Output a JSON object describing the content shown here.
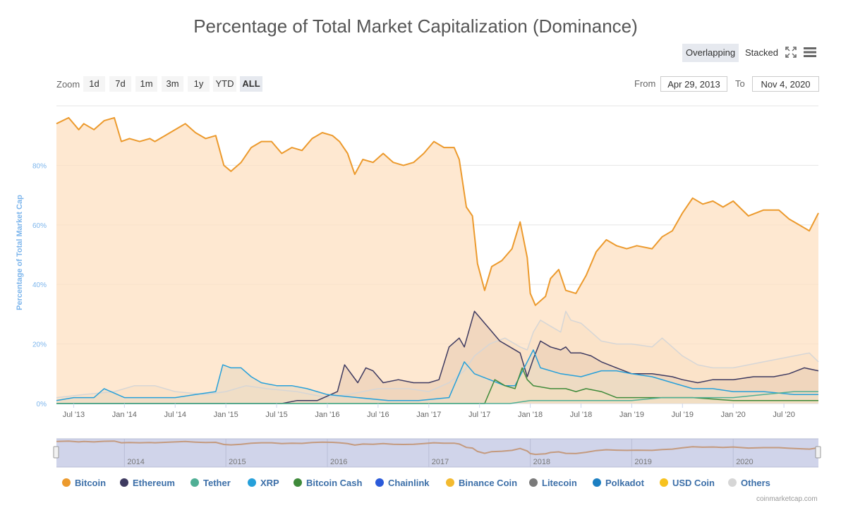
{
  "title": "Percentage of Total Market Capitalization (Dominance)",
  "modes": {
    "overlapping": "Overlapping",
    "stacked": "Stacked"
  },
  "zoom": {
    "label": "Zoom",
    "buttons": [
      "1d",
      "7d",
      "1m",
      "3m",
      "1y",
      "YTD",
      "ALL"
    ],
    "active": "ALL"
  },
  "range": {
    "from_label": "From",
    "from_value": "Apr 29, 2013",
    "to_label": "To",
    "to_value": "Nov 4, 2020"
  },
  "credit": "coinmarketcap.com",
  "icons": {
    "fullscreen": "fullscreen-icon",
    "menu": "hamburger-menu-icon"
  },
  "chart_data": {
    "type": "area",
    "title": "Percentage of Total Market Capitalization (Dominance)",
    "ylabel": "Percentage of Total Market Cap",
    "xlabel": "",
    "ylim": [
      0,
      100
    ],
    "y_ticks": [
      0,
      20,
      40,
      60,
      80
    ],
    "y_tick_labels": [
      "0%",
      "20%",
      "40%",
      "60%",
      "80%"
    ],
    "x_range": [
      2013.33,
      2020.84
    ],
    "x_ticks": [
      {
        "label": "Jul '13",
        "x": 2013.5
      },
      {
        "label": "Jan '14",
        "x": 2014.0
      },
      {
        "label": "Jul '14",
        "x": 2014.5
      },
      {
        "label": "Jan '15",
        "x": 2015.0
      },
      {
        "label": "Jul '15",
        "x": 2015.5
      },
      {
        "label": "Jan '16",
        "x": 2016.0
      },
      {
        "label": "Jul '16",
        "x": 2016.5
      },
      {
        "label": "Jan '17",
        "x": 2017.0
      },
      {
        "label": "Jul '17",
        "x": 2017.5
      },
      {
        "label": "Jan '18",
        "x": 2018.0
      },
      {
        "label": "Jul '18",
        "x": 2018.5
      },
      {
        "label": "Jan '19",
        "x": 2019.0
      },
      {
        "label": "Jul '19",
        "x": 2019.5
      },
      {
        "label": "Jan '20",
        "x": 2020.0
      },
      {
        "label": "Jul '20",
        "x": 2020.5
      }
    ],
    "navigator": {
      "years": [
        "2014",
        "2015",
        "2016",
        "2017",
        "2018",
        "2019",
        "2020"
      ]
    },
    "series": [
      {
        "name": "Others",
        "color": "#d6d6d6",
        "fill": "#efe3d4",
        "points": [
          [
            2013.33,
            2
          ],
          [
            2013.6,
            3
          ],
          [
            2013.9,
            4
          ],
          [
            2014.1,
            6
          ],
          [
            2014.3,
            6
          ],
          [
            2014.5,
            4
          ],
          [
            2014.8,
            3
          ],
          [
            2015.0,
            4
          ],
          [
            2015.2,
            6
          ],
          [
            2015.4,
            5
          ],
          [
            2015.7,
            4
          ],
          [
            2016.0,
            2
          ],
          [
            2016.2,
            3
          ],
          [
            2016.5,
            5
          ],
          [
            2016.8,
            5
          ],
          [
            2017.0,
            4
          ],
          [
            2017.2,
            7
          ],
          [
            2017.35,
            11
          ],
          [
            2017.45,
            16
          ],
          [
            2017.6,
            20
          ],
          [
            2017.75,
            22
          ],
          [
            2017.9,
            19
          ],
          [
            2017.97,
            18
          ],
          [
            2018.03,
            24
          ],
          [
            2018.1,
            28
          ],
          [
            2018.2,
            26
          ],
          [
            2018.3,
            24
          ],
          [
            2018.35,
            31
          ],
          [
            2018.4,
            28
          ],
          [
            2018.5,
            27
          ],
          [
            2018.6,
            24
          ],
          [
            2018.7,
            21
          ],
          [
            2018.85,
            20
          ],
          [
            2019.0,
            20
          ],
          [
            2019.2,
            19
          ],
          [
            2019.3,
            22
          ],
          [
            2019.4,
            19
          ],
          [
            2019.5,
            16
          ],
          [
            2019.65,
            13
          ],
          [
            2019.8,
            12
          ],
          [
            2020.0,
            12
          ],
          [
            2020.3,
            14
          ],
          [
            2020.6,
            16
          ],
          [
            2020.75,
            17
          ],
          [
            2020.84,
            14
          ]
        ]
      },
      {
        "name": "Ethereum",
        "color": "#3e3a60",
        "fill": "#b7a6a0",
        "points": [
          [
            2013.33,
            0
          ],
          [
            2015.55,
            0
          ],
          [
            2015.7,
            1
          ],
          [
            2015.9,
            1
          ],
          [
            2016.1,
            4
          ],
          [
            2016.17,
            13
          ],
          [
            2016.3,
            7
          ],
          [
            2016.38,
            12
          ],
          [
            2016.45,
            11
          ],
          [
            2016.55,
            7
          ],
          [
            2016.7,
            8
          ],
          [
            2016.85,
            7
          ],
          [
            2017.0,
            7
          ],
          [
            2017.1,
            8
          ],
          [
            2017.2,
            19
          ],
          [
            2017.3,
            22
          ],
          [
            2017.35,
            19
          ],
          [
            2017.45,
            31
          ],
          [
            2017.5,
            29
          ],
          [
            2017.55,
            27
          ],
          [
            2017.6,
            25
          ],
          [
            2017.7,
            21
          ],
          [
            2017.8,
            19
          ],
          [
            2017.9,
            17
          ],
          [
            2017.97,
            9
          ],
          [
            2018.03,
            15
          ],
          [
            2018.1,
            21
          ],
          [
            2018.2,
            19
          ],
          [
            2018.3,
            18
          ],
          [
            2018.35,
            19
          ],
          [
            2018.4,
            17
          ],
          [
            2018.5,
            17
          ],
          [
            2018.6,
            16
          ],
          [
            2018.7,
            14
          ],
          [
            2018.85,
            12
          ],
          [
            2019.0,
            10
          ],
          [
            2019.2,
            10
          ],
          [
            2019.4,
            9
          ],
          [
            2019.5,
            8
          ],
          [
            2019.65,
            7
          ],
          [
            2019.8,
            8
          ],
          [
            2020.0,
            8
          ],
          [
            2020.2,
            9
          ],
          [
            2020.4,
            9
          ],
          [
            2020.55,
            10
          ],
          [
            2020.7,
            12
          ],
          [
            2020.84,
            11
          ]
        ]
      },
      {
        "name": "XRP",
        "color": "#26a0da",
        "fill": "#b9cfcd",
        "points": [
          [
            2013.33,
            1
          ],
          [
            2013.5,
            2
          ],
          [
            2013.7,
            2
          ],
          [
            2013.8,
            5
          ],
          [
            2014.0,
            2
          ],
          [
            2014.3,
            2
          ],
          [
            2014.5,
            2
          ],
          [
            2014.7,
            3
          ],
          [
            2014.9,
            4
          ],
          [
            2014.97,
            13
          ],
          [
            2015.05,
            12
          ],
          [
            2015.15,
            12
          ],
          [
            2015.25,
            9
          ],
          [
            2015.35,
            7
          ],
          [
            2015.5,
            6
          ],
          [
            2015.65,
            6
          ],
          [
            2015.8,
            5
          ],
          [
            2015.9,
            4
          ],
          [
            2016.0,
            3
          ],
          [
            2016.3,
            2
          ],
          [
            2016.6,
            1
          ],
          [
            2016.9,
            1
          ],
          [
            2017.2,
            2
          ],
          [
            2017.3,
            10
          ],
          [
            2017.35,
            14
          ],
          [
            2017.45,
            10
          ],
          [
            2017.6,
            8
          ],
          [
            2017.75,
            6
          ],
          [
            2017.85,
            6
          ],
          [
            2017.97,
            14
          ],
          [
            2018.03,
            18
          ],
          [
            2018.1,
            12
          ],
          [
            2018.3,
            10
          ],
          [
            2018.5,
            9
          ],
          [
            2018.7,
            11
          ],
          [
            2018.85,
            11
          ],
          [
            2019.0,
            10
          ],
          [
            2019.2,
            9
          ],
          [
            2019.4,
            7
          ],
          [
            2019.6,
            5
          ],
          [
            2019.8,
            5
          ],
          [
            2020.0,
            4
          ],
          [
            2020.3,
            4
          ],
          [
            2020.6,
            3
          ],
          [
            2020.84,
            3
          ]
        ]
      },
      {
        "name": "Bitcoin Cash",
        "color": "#3f8a3a",
        "fill": "#cfd5b9",
        "points": [
          [
            2013.33,
            0
          ],
          [
            2017.55,
            0
          ],
          [
            2017.6,
            4
          ],
          [
            2017.65,
            8
          ],
          [
            2017.75,
            6
          ],
          [
            2017.85,
            5
          ],
          [
            2017.92,
            12
          ],
          [
            2017.97,
            8
          ],
          [
            2018.03,
            6
          ],
          [
            2018.2,
            5
          ],
          [
            2018.35,
            5
          ],
          [
            2018.45,
            4
          ],
          [
            2018.55,
            5
          ],
          [
            2018.7,
            4
          ],
          [
            2018.85,
            2
          ],
          [
            2019.0,
            2
          ],
          [
            2019.3,
            2
          ],
          [
            2019.6,
            2
          ],
          [
            2020.0,
            1
          ],
          [
            2020.4,
            1
          ],
          [
            2020.84,
            1
          ]
        ]
      },
      {
        "name": "Tether",
        "color": "#50af95",
        "fill": "#c9d7c9",
        "points": [
          [
            2013.33,
            0
          ],
          [
            2017.8,
            0
          ],
          [
            2018.0,
            1
          ],
          [
            2018.5,
            1
          ],
          [
            2019.0,
            1
          ],
          [
            2019.3,
            2
          ],
          [
            2019.6,
            2
          ],
          [
            2020.0,
            2
          ],
          [
            2020.3,
            3
          ],
          [
            2020.6,
            4
          ],
          [
            2020.84,
            4
          ]
        ]
      },
      {
        "name": "Bitcoin",
        "color": "#ec9a2d",
        "fill": "#fde0c2",
        "points": [
          [
            2013.33,
            94
          ],
          [
            2013.45,
            96
          ],
          [
            2013.55,
            92
          ],
          [
            2013.6,
            94
          ],
          [
            2013.7,
            92
          ],
          [
            2013.8,
            95
          ],
          [
            2013.9,
            96
          ],
          [
            2013.97,
            88
          ],
          [
            2014.05,
            89
          ],
          [
            2014.15,
            88
          ],
          [
            2014.25,
            89
          ],
          [
            2014.3,
            88
          ],
          [
            2014.4,
            90
          ],
          [
            2014.5,
            92
          ],
          [
            2014.6,
            94
          ],
          [
            2014.7,
            91
          ],
          [
            2014.8,
            89
          ],
          [
            2014.9,
            90
          ],
          [
            2014.98,
            80
          ],
          [
            2015.05,
            78
          ],
          [
            2015.15,
            81
          ],
          [
            2015.25,
            86
          ],
          [
            2015.35,
            88
          ],
          [
            2015.45,
            88
          ],
          [
            2015.55,
            84
          ],
          [
            2015.65,
            86
          ],
          [
            2015.75,
            85
          ],
          [
            2015.85,
            89
          ],
          [
            2015.95,
            91
          ],
          [
            2016.05,
            90
          ],
          [
            2016.12,
            88
          ],
          [
            2016.2,
            84
          ],
          [
            2016.27,
            77
          ],
          [
            2016.35,
            82
          ],
          [
            2016.45,
            81
          ],
          [
            2016.55,
            84
          ],
          [
            2016.65,
            81
          ],
          [
            2016.75,
            80
          ],
          [
            2016.85,
            81
          ],
          [
            2016.95,
            84
          ],
          [
            2017.05,
            88
          ],
          [
            2017.15,
            86
          ],
          [
            2017.25,
            86
          ],
          [
            2017.3,
            82
          ],
          [
            2017.37,
            66
          ],
          [
            2017.43,
            63
          ],
          [
            2017.48,
            47
          ],
          [
            2017.55,
            38
          ],
          [
            2017.62,
            46
          ],
          [
            2017.72,
            48
          ],
          [
            2017.82,
            52
          ],
          [
            2017.9,
            61
          ],
          [
            2017.97,
            49
          ],
          [
            2018.0,
            37
          ],
          [
            2018.05,
            33
          ],
          [
            2018.15,
            36
          ],
          [
            2018.2,
            42
          ],
          [
            2018.28,
            45
          ],
          [
            2018.35,
            38
          ],
          [
            2018.45,
            37
          ],
          [
            2018.55,
            43
          ],
          [
            2018.65,
            51
          ],
          [
            2018.75,
            55
          ],
          [
            2018.85,
            53
          ],
          [
            2018.95,
            52
          ],
          [
            2019.05,
            53
          ],
          [
            2019.2,
            52
          ],
          [
            2019.3,
            56
          ],
          [
            2019.4,
            58
          ],
          [
            2019.5,
            64
          ],
          [
            2019.6,
            69
          ],
          [
            2019.7,
            67
          ],
          [
            2019.8,
            68
          ],
          [
            2019.9,
            66
          ],
          [
            2020.0,
            68
          ],
          [
            2020.15,
            63
          ],
          [
            2020.3,
            65
          ],
          [
            2020.45,
            65
          ],
          [
            2020.55,
            62
          ],
          [
            2020.65,
            60
          ],
          [
            2020.75,
            58
          ],
          [
            2020.84,
            64
          ]
        ]
      }
    ],
    "legend": [
      {
        "name": "Bitcoin",
        "color": "#ec9a2d"
      },
      {
        "name": "Ethereum",
        "color": "#3e3a60"
      },
      {
        "name": "Tether",
        "color": "#50af95"
      },
      {
        "name": "XRP",
        "color": "#26a0da"
      },
      {
        "name": "Bitcoin Cash",
        "color": "#3f8a3a"
      },
      {
        "name": "Chainlink",
        "color": "#2a5ada"
      },
      {
        "name": "Binance Coin",
        "color": "#f3ba2f"
      },
      {
        "name": "Litecoin",
        "color": "#7a7a7a"
      },
      {
        "name": "Polkadot",
        "color": "#1c7fc2"
      },
      {
        "name": "USD Coin",
        "color": "#f7c21f"
      },
      {
        "name": "Others",
        "color": "#d6d6d6"
      }
    ]
  }
}
